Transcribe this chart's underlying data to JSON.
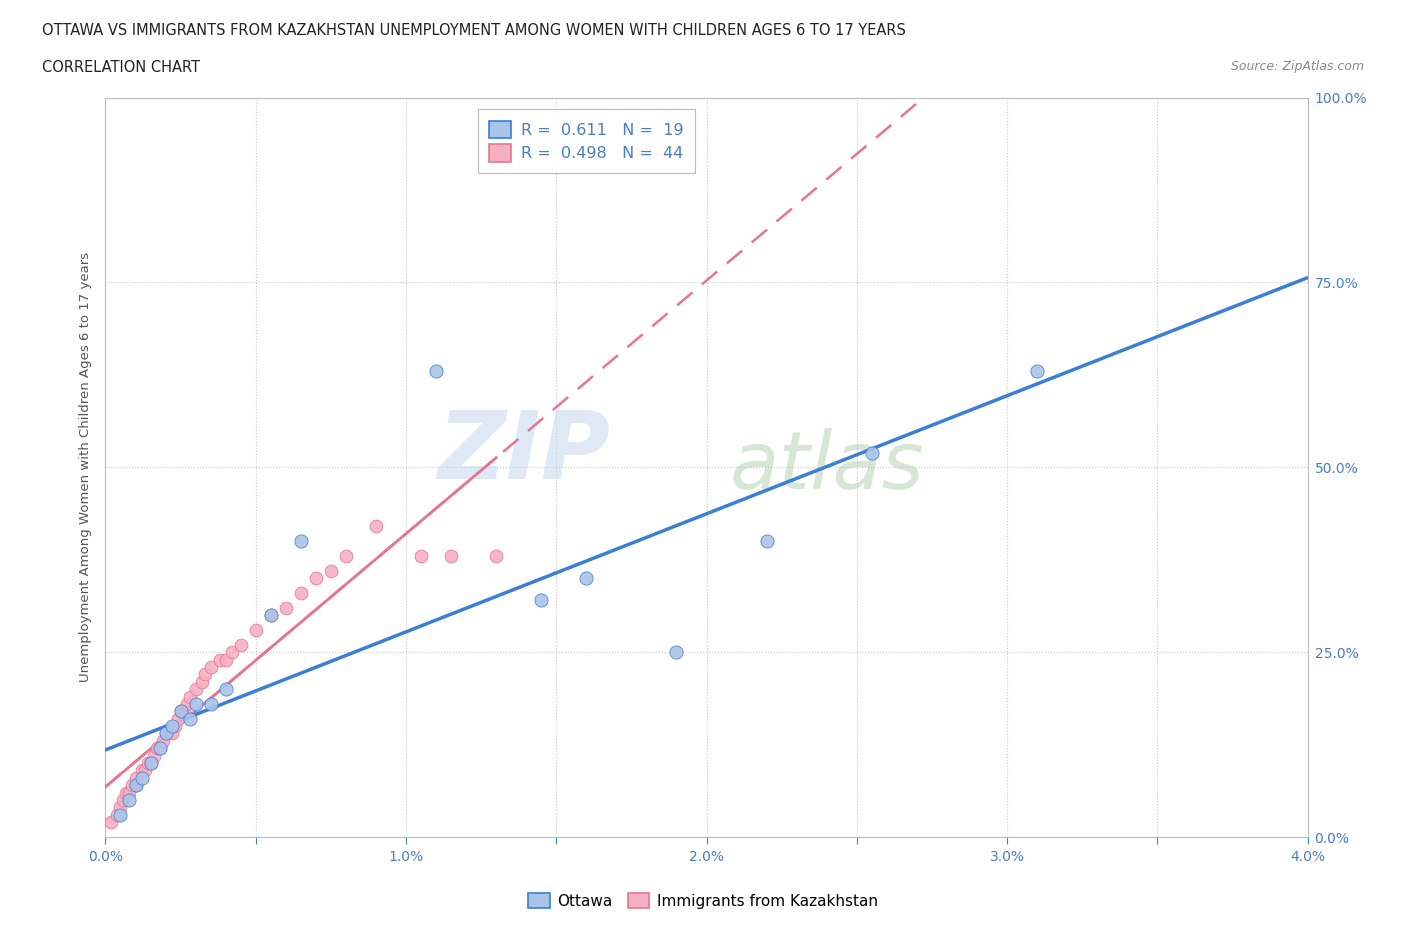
{
  "title_line1": "OTTAWA VS IMMIGRANTS FROM KAZAKHSTAN UNEMPLOYMENT AMONG WOMEN WITH CHILDREN AGES 6 TO 17 YEARS",
  "title_line2": "CORRELATION CHART",
  "source_text": "Source: ZipAtlas.com",
  "ylabel": "Unemployment Among Women with Children Ages 6 to 17 years",
  "watermark_zip": "ZIP",
  "watermark_atlas": "atlas",
  "ottawa_color": "#aac4e8",
  "kazakhstan_color": "#f5afc2",
  "trend_ottawa_color": "#3a7fd5",
  "trend_kazakhstan_color": "#e8748f",
  "x_ticks": [
    0.0,
    0.5,
    1.0,
    1.5,
    2.0,
    2.5,
    3.0,
    3.5,
    4.0
  ],
  "x_tick_labels": [
    "0.0%",
    "",
    "1.0%",
    "",
    "2.0%",
    "",
    "3.0%",
    "",
    "4.0%"
  ],
  "y_ticks": [
    0.0,
    25.0,
    50.0,
    75.0,
    100.0
  ],
  "y_tick_labels": [
    "0.0%",
    "25.0%",
    "50.0%",
    "75.0%",
    "100.0%"
  ],
  "xlim": [
    0.0,
    4.0
  ],
  "ylim": [
    0.0,
    100.0
  ],
  "ottawa_x": [
    0.05,
    0.08,
    0.1,
    0.12,
    0.15,
    0.18,
    0.2,
    0.22,
    0.25,
    0.28,
    0.3,
    0.35,
    0.4,
    0.55,
    0.65,
    1.1,
    1.45,
    1.6,
    1.9,
    2.2,
    2.55,
    3.1
  ],
  "ottawa_y": [
    3,
    5,
    7,
    8,
    10,
    12,
    14,
    15,
    17,
    16,
    18,
    18,
    20,
    30,
    40,
    63,
    32,
    35,
    25,
    40,
    52,
    63
  ],
  "kazakh_x": [
    0.02,
    0.04,
    0.05,
    0.06,
    0.07,
    0.08,
    0.09,
    0.1,
    0.1,
    0.12,
    0.13,
    0.14,
    0.15,
    0.16,
    0.17,
    0.18,
    0.19,
    0.2,
    0.22,
    0.23,
    0.24,
    0.25,
    0.26,
    0.27,
    0.28,
    0.3,
    0.32,
    0.33,
    0.35,
    0.38,
    0.4,
    0.42,
    0.45,
    0.5,
    0.55,
    0.6,
    0.65,
    0.7,
    0.75,
    0.8,
    0.9,
    1.05,
    1.15,
    1.3
  ],
  "kazakh_y": [
    2,
    3,
    4,
    5,
    6,
    6,
    7,
    7,
    8,
    9,
    9,
    10,
    10,
    11,
    12,
    12,
    13,
    14,
    14,
    15,
    16,
    17,
    17,
    18,
    19,
    20,
    21,
    22,
    23,
    24,
    24,
    25,
    26,
    28,
    30,
    31,
    33,
    35,
    36,
    38,
    42,
    38,
    38,
    38
  ],
  "background_color": "#ffffff",
  "grid_color": "#cccccc",
  "grid_dotted_color": "#c8c8c8"
}
